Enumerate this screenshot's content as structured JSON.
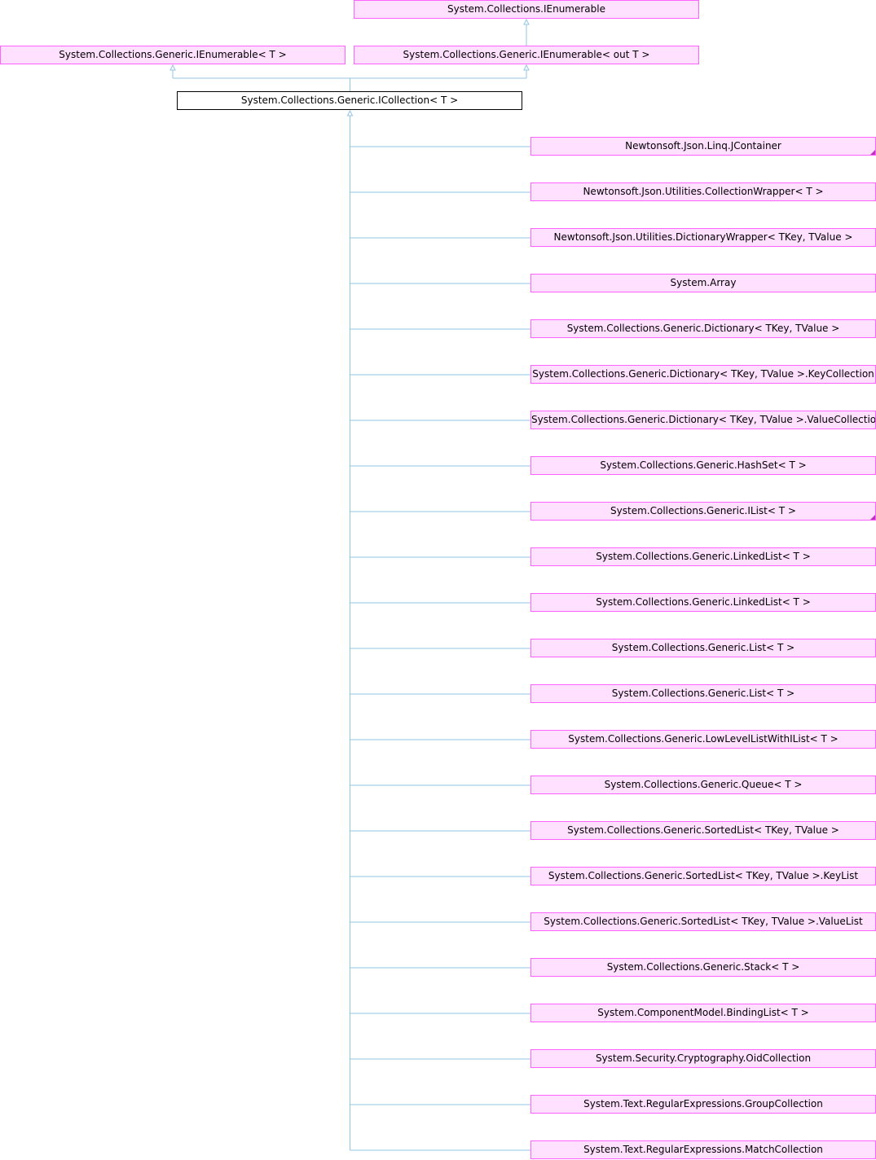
{
  "colors": {
    "node_fill": "#ffe0ff",
    "node_border": "#ff63ff",
    "current_fill": "#ffffff",
    "current_border": "#000000",
    "edge": "#93c4e6"
  },
  "bases": {
    "ienumerable": "System.Collections.IEnumerable",
    "ienumerable_t": "System.Collections.Generic.IEnumerable< T >",
    "ienumerable_out_t": "System.Collections.Generic.IEnumerable< out T >"
  },
  "current": "System.Collections.Generic.ICollection< T >",
  "derived": [
    {
      "label": "Newtonsoft.Json.Linq.JContainer",
      "has_more": true
    },
    {
      "label": "Newtonsoft.Json.Utilities.CollectionWrapper< T >",
      "has_more": false
    },
    {
      "label": "Newtonsoft.Json.Utilities.DictionaryWrapper< TKey, TValue >",
      "has_more": false
    },
    {
      "label": "System.Array",
      "has_more": false
    },
    {
      "label": "System.Collections.Generic.Dictionary< TKey, TValue >",
      "has_more": false
    },
    {
      "label": "System.Collections.Generic.Dictionary< TKey, TValue >.KeyCollection",
      "has_more": false
    },
    {
      "label": "System.Collections.Generic.Dictionary< TKey, TValue >.ValueCollection",
      "has_more": false
    },
    {
      "label": "System.Collections.Generic.HashSet< T >",
      "has_more": false
    },
    {
      "label": "System.Collections.Generic.IList< T >",
      "has_more": true
    },
    {
      "label": "System.Collections.Generic.LinkedList< T >",
      "has_more": false
    },
    {
      "label": "System.Collections.Generic.LinkedList< T >",
      "has_more": false
    },
    {
      "label": "System.Collections.Generic.List< T >",
      "has_more": false
    },
    {
      "label": "System.Collections.Generic.List< T >",
      "has_more": false
    },
    {
      "label": "System.Collections.Generic.LowLevelListWithIList< T >",
      "has_more": false
    },
    {
      "label": "System.Collections.Generic.Queue< T >",
      "has_more": false
    },
    {
      "label": "System.Collections.Generic.SortedList< TKey, TValue >",
      "has_more": false
    },
    {
      "label": "System.Collections.Generic.SortedList< TKey, TValue >.KeyList",
      "has_more": false
    },
    {
      "label": "System.Collections.Generic.SortedList< TKey, TValue >.ValueList",
      "has_more": false
    },
    {
      "label": "System.Collections.Generic.Stack< T >",
      "has_more": false
    },
    {
      "label": "System.ComponentModel.BindingList< T >",
      "has_more": false
    },
    {
      "label": "System.Security.Cryptography.OidCollection",
      "has_more": false
    },
    {
      "label": "System.Text.RegularExpressions.GroupCollection",
      "has_more": false
    },
    {
      "label": "System.Text.RegularExpressions.MatchCollection",
      "has_more": false
    }
  ]
}
